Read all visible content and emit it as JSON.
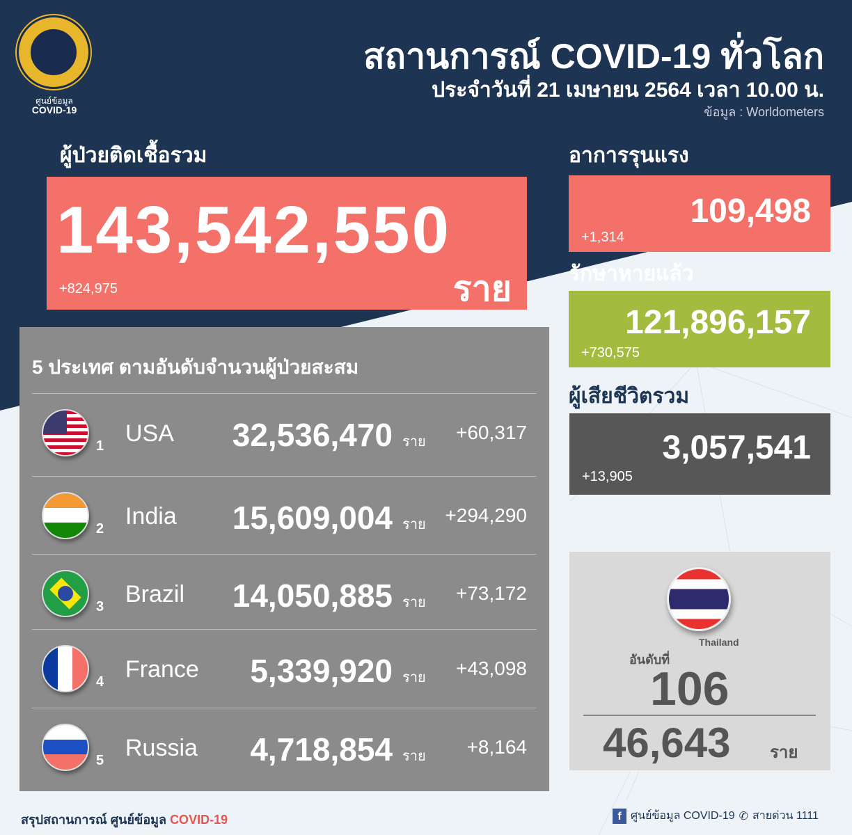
{
  "header": {
    "logo_line1": "ศูนย์ข้อมูล",
    "logo_line2": "COVID-19",
    "title": "สถานการณ์ COVID-19 ทั่วโลก",
    "subtitle": "ประจำวันที่ 21 เมษายน 2564 เวลา 10.00 น.",
    "source": "ข้อมูล : Worldometers"
  },
  "total": {
    "label": "ผู้ป่วยติดเชื้อรวม",
    "value": "143,542,550",
    "unit": "ราย",
    "delta": "+824,975"
  },
  "severe": {
    "label": "อาการรุนแรง",
    "value": "109,498",
    "delta": "+1,314"
  },
  "recovered": {
    "label": "รักษาหายแล้ว",
    "value": "121,896,157",
    "delta": "+730,575"
  },
  "deaths": {
    "label": "ผู้เสียชีวิตรวม",
    "value": "3,057,541",
    "delta": "+13,905"
  },
  "top5": {
    "title": "5 ประเทศ ตามอันดับจำนวนผู้ป่วยสะสม",
    "unit": "ราย",
    "rows": [
      {
        "rank": "1",
        "country": "USA",
        "cases": "32,536,470",
        "delta": "+60,317"
      },
      {
        "rank": "2",
        "country": "India",
        "cases": "15,609,004",
        "delta": "+294,290"
      },
      {
        "rank": "3",
        "country": "Brazil",
        "cases": "14,050,885",
        "delta": "+73,172"
      },
      {
        "rank": "4",
        "country": "France",
        "cases": "5,339,920",
        "delta": "+43,098"
      },
      {
        "rank": "5",
        "country": "Russia",
        "cases": "4,718,854",
        "delta": "+8,164"
      }
    ]
  },
  "thailand": {
    "name": "Thailand",
    "rank_label": "อันดับที่",
    "rank": "106",
    "cases": "46,643",
    "unit": "ราย"
  },
  "footer": {
    "left_prefix": "สรุปสถานการณ์ ศูนย์ข้อมูล",
    "left_accent": "COVID-19",
    "page": "ศูนย์ข้อมูล COVID-19",
    "hotline": "สายด่วน 1111"
  },
  "colors": {
    "navy": "#1d3552",
    "red": "#f4716a",
    "green": "#a3bb3e",
    "dark": "#575757",
    "accent": "#e9534f"
  }
}
